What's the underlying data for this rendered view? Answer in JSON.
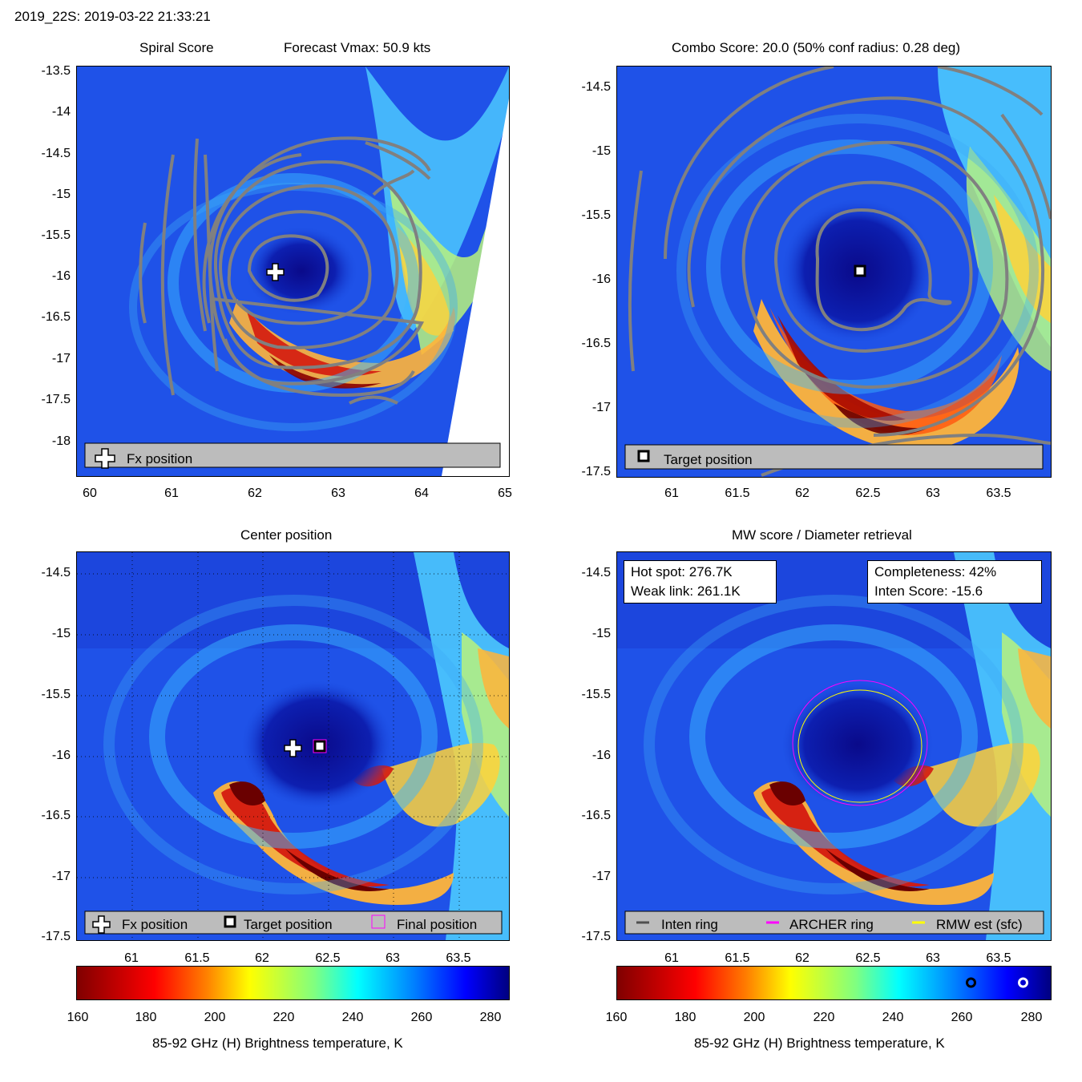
{
  "header": {
    "title": "2019_22S: 2019-03-22 21:33:21"
  },
  "colors": {
    "contour": "#808080",
    "legend_bg": "#bcbcbc",
    "archer_ring": "#ff00ff",
    "rmw_ring": "#ffff00",
    "inten_ring": "#505050"
  },
  "panels": {
    "spiral": {
      "title_left": "Spiral Score",
      "title_right": "Forecast Vmax: 50.9 kts",
      "legend": {
        "fx": "Fx position"
      }
    },
    "combo": {
      "title": "Combo Score: 20.0  (50% conf radius: 0.28 deg)",
      "legend": {
        "target": "Target position"
      }
    },
    "center": {
      "title": "Center position",
      "legend": {
        "fx": "Fx position",
        "target": "Target position",
        "final": "Final position"
      }
    },
    "mw": {
      "title": "MW score / Diameter retrieval",
      "info_left": {
        "hot_spot": "Hot spot: 276.7K",
        "weak_link": "Weak link: 261.1K"
      },
      "info_right": {
        "completeness": "Completeness: 42%",
        "inten_score": "Inten Score: -15.6"
      },
      "legend": {
        "inten": "Inten ring",
        "archer": "ARCHER ring",
        "rmw": "RMW est (sfc)"
      }
    }
  },
  "colorbar": {
    "label": "85-92 GHz (H) Brightness temperature, K",
    "ticks": [
      "160",
      "180",
      "200",
      "220",
      "240",
      "260",
      "280"
    ],
    "range": [
      155,
      285
    ],
    "markers": [
      {
        "value": 261.1,
        "name": "weak-link-marker"
      },
      {
        "value": 276.7,
        "name": "hot-spot-marker"
      }
    ]
  },
  "chart_data": [
    {
      "type": "heatmap",
      "title": "Spiral Score  Forecast Vmax: 50.9 kts",
      "x_ticks": [
        "60",
        "61",
        "62",
        "63",
        "64",
        "65"
      ],
      "y_ticks": [
        "-13.5",
        "-14",
        "-14.5",
        "-15",
        "-15.5",
        "-16",
        "-16.5",
        "-17",
        "-17.5",
        "-18"
      ],
      "xlim": [
        59.85,
        65.05
      ],
      "ylim": [
        -18.45,
        -13.4
      ],
      "fx_position": [
        62.25,
        -15.92
      ]
    },
    {
      "type": "heatmap",
      "title": "Combo Score: 20.0  (50% conf radius: 0.28 deg)",
      "x_ticks": [
        "61",
        "61.5",
        "62",
        "62.5",
        "63",
        "63.5"
      ],
      "y_ticks": [
        "-14.5",
        "-15",
        "-15.5",
        "-16",
        "-16.5",
        "-17",
        "-17.5"
      ],
      "xlim": [
        60.55,
        63.9
      ],
      "ylim": [
        -17.5,
        -14.3
      ],
      "target_position": [
        62.44,
        -15.92
      ]
    },
    {
      "type": "heatmap",
      "title": "Center position",
      "x_ticks": [
        "61",
        "61.5",
        "62",
        "62.5",
        "63",
        "63.5"
      ],
      "y_ticks": [
        "-14.5",
        "-15",
        "-15.5",
        "-16",
        "-16.5",
        "-17",
        "-17.5"
      ],
      "xlim": [
        60.55,
        63.9
      ],
      "ylim": [
        -17.5,
        -14.3
      ],
      "fx_position": [
        62.23,
        -15.92
      ],
      "target_position": [
        62.44,
        -15.92
      ],
      "final_position": [
        62.44,
        -15.92
      ]
    },
    {
      "type": "heatmap",
      "title": "MW score / Diameter retrieval",
      "x_ticks": [
        "61",
        "61.5",
        "62",
        "62.5",
        "63",
        "63.5"
      ],
      "y_ticks": [
        "-14.5",
        "-15",
        "-15.5",
        "-16",
        "-16.5",
        "-17",
        "-17.5"
      ],
      "xlim": [
        60.55,
        63.9
      ],
      "ylim": [
        -17.5,
        -14.3
      ],
      "archer_ring": {
        "center": [
          62.44,
          -15.92
        ],
        "radius_deg": 0.51
      },
      "rmw_ring": {
        "center": [
          62.44,
          -15.92
        ],
        "radius_deg": 0.47
      }
    }
  ]
}
